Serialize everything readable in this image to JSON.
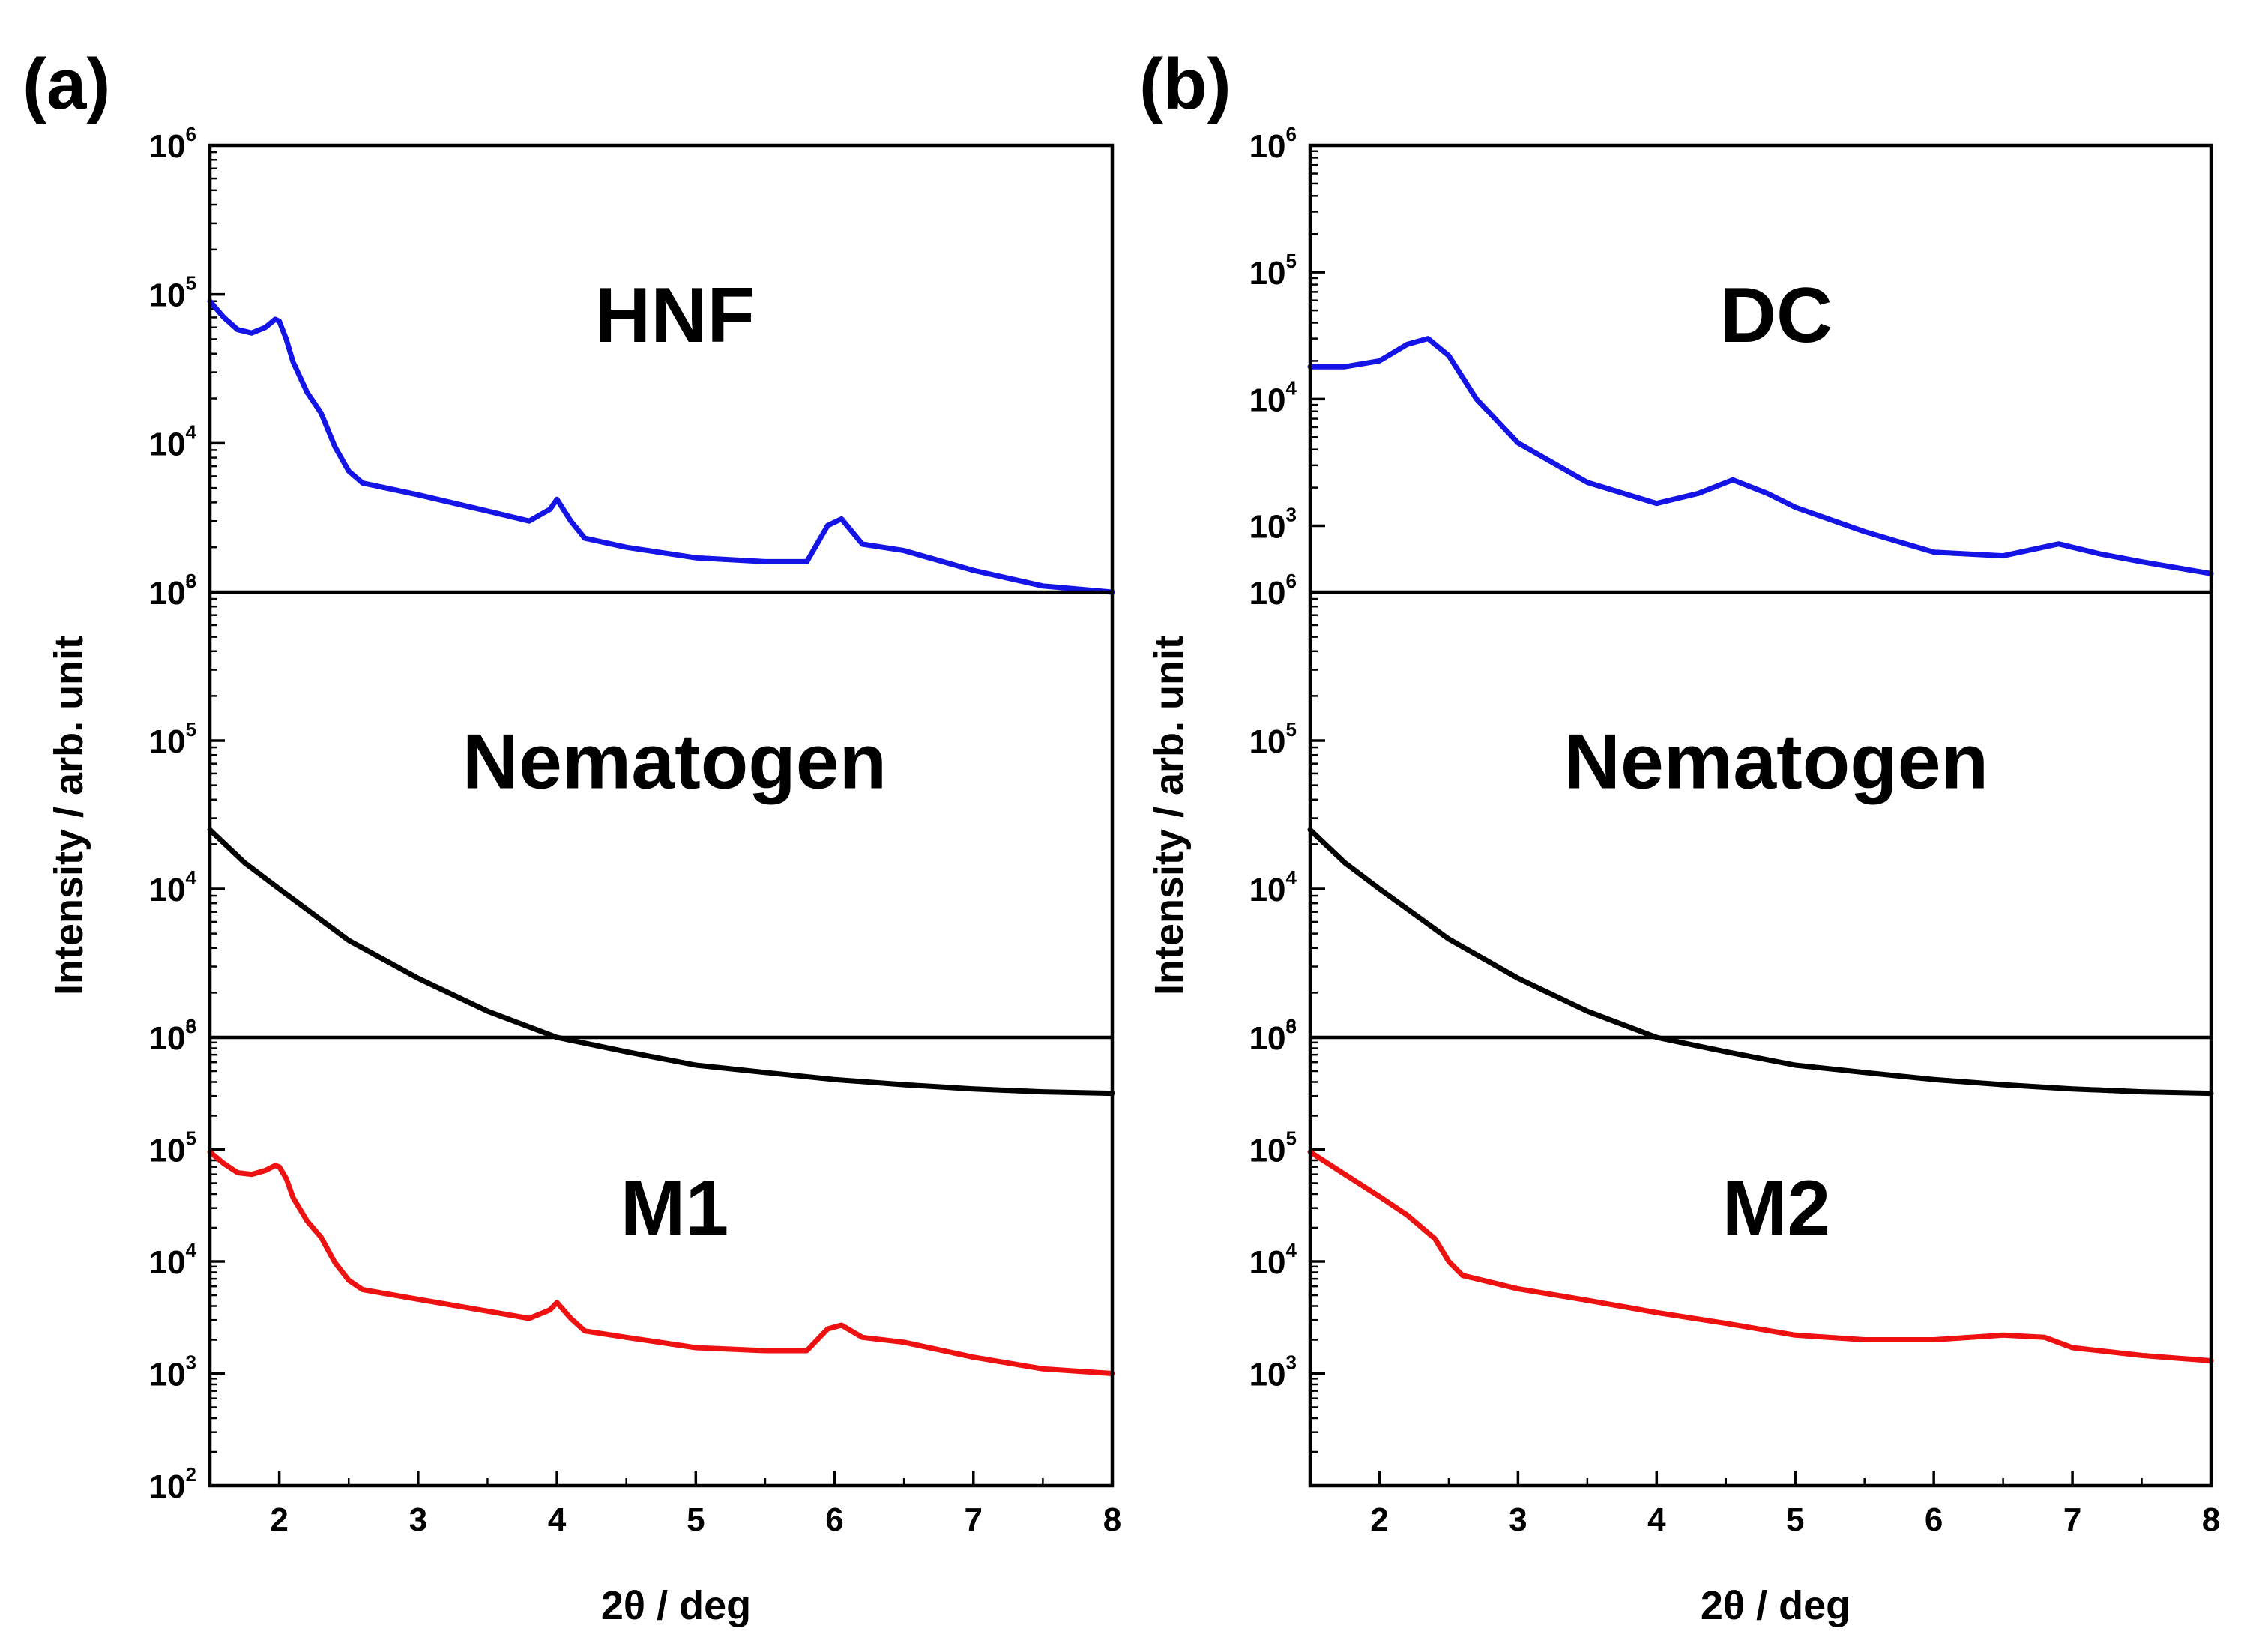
{
  "chart_data": [
    {
      "panel_label": "(a)",
      "type": "line",
      "xlabel": "2θ / deg",
      "ylabel": "Intensity / arb. unit",
      "xlim": [
        1.5,
        8
      ],
      "xticks": [
        "2",
        "3",
        "4",
        "5",
        "6",
        "7",
        "8"
      ],
      "y_scale": "log",
      "subplots": [
        {
          "name": "HNF",
          "label": "HNF",
          "color": "#1414e6",
          "ylim": [
            1000,
            1000000
          ],
          "ytick_labels": [
            {
              "base": "10",
              "exp": "6"
            },
            {
              "base": "10",
              "exp": "5"
            },
            {
              "base": "10",
              "exp": "4"
            },
            {
              "base": "10",
              "exp": "3"
            }
          ],
          "x": [
            1.5,
            1.6,
            1.7,
            1.8,
            1.9,
            1.97,
            2.0,
            2.05,
            2.1,
            2.2,
            2.3,
            2.4,
            2.5,
            2.6,
            3.0,
            3.5,
            3.8,
            3.95,
            4.0,
            4.1,
            4.2,
            4.5,
            5.0,
            5.5,
            5.8,
            5.95,
            6.05,
            6.2,
            6.5,
            7.0,
            7.5,
            8.0
          ],
          "y": [
            90000,
            70000,
            58000,
            55000,
            60000,
            68000,
            66000,
            50000,
            35000,
            22000,
            16000,
            9500,
            6500,
            5400,
            4500,
            3500,
            3000,
            3600,
            4200,
            3000,
            2300,
            2000,
            1700,
            1600,
            1600,
            2800,
            3100,
            2100,
            1900,
            1400,
            1100,
            1000
          ]
        },
        {
          "name": "Nematogen",
          "label": "Nematogen",
          "color": "#000000",
          "ylim": [
            1000,
            1000000
          ],
          "ytick_labels": [
            {
              "base": "10",
              "exp": "6"
            },
            {
              "base": "10",
              "exp": "5"
            },
            {
              "base": "10",
              "exp": "4"
            },
            {
              "base": "10",
              "exp": "3"
            }
          ],
          "x": [
            1.5,
            1.75,
            2.0,
            2.5,
            3.0,
            3.5,
            4.0,
            4.5,
            5.0,
            5.5,
            6.0,
            6.5,
            7.0,
            7.5,
            8.0
          ],
          "y": [
            25000,
            15000,
            10000,
            4500,
            2500,
            1500,
            1000,
            800,
            650,
            580,
            520,
            480,
            450,
            430,
            420
          ]
        },
        {
          "name": "M1",
          "label": "M1",
          "color": "#ee1111",
          "ylim": [
            100,
            1000000
          ],
          "ytick_labels": [
            {
              "base": "10",
              "exp": "6"
            },
            {
              "base": "10",
              "exp": "5"
            },
            {
              "base": "10",
              "exp": "4"
            },
            {
              "base": "10",
              "exp": "3"
            },
            {
              "base": "10",
              "exp": "2"
            }
          ],
          "x": [
            1.5,
            1.6,
            1.7,
            1.8,
            1.9,
            1.97,
            2.0,
            2.05,
            2.1,
            2.2,
            2.3,
            2.4,
            2.5,
            2.6,
            3.0,
            3.5,
            3.8,
            3.95,
            4.0,
            4.1,
            4.2,
            4.5,
            5.0,
            5.5,
            5.8,
            5.95,
            6.05,
            6.2,
            6.5,
            7.0,
            7.5,
            8.0
          ],
          "y": [
            95000,
            75000,
            62000,
            60000,
            65000,
            72000,
            70000,
            55000,
            37000,
            23000,
            16500,
            9800,
            6800,
            5600,
            4600,
            3600,
            3100,
            3700,
            4300,
            3100,
            2400,
            2100,
            1700,
            1600,
            1600,
            2500,
            2700,
            2100,
            1900,
            1400,
            1100,
            1000
          ]
        }
      ]
    },
    {
      "panel_label": "(b)",
      "type": "line",
      "xlabel": "2θ / deg",
      "ylabel": "Intensity / arb. unit",
      "xlim": [
        1.5,
        8
      ],
      "xticks": [
        "2",
        "3",
        "4",
        "5",
        "6",
        "7",
        "8"
      ],
      "y_scale": "log",
      "subplots": [
        {
          "name": "DC",
          "label": "DC",
          "color": "#1414e6",
          "ylim": [
            300,
            1000000
          ],
          "ytick_labels": [
            {
              "base": "10",
              "exp": "6"
            },
            {
              "base": "10",
              "exp": "5"
            },
            {
              "base": "10",
              "exp": "4"
            },
            {
              "base": "10",
              "exp": "3"
            }
          ],
          "x": [
            1.5,
            1.75,
            2.0,
            2.2,
            2.35,
            2.5,
            2.7,
            3.0,
            3.5,
            4.0,
            4.3,
            4.55,
            4.8,
            5.0,
            5.5,
            6.0,
            6.5,
            6.9,
            7.2,
            7.5,
            8.0
          ],
          "y": [
            18000,
            18000,
            20000,
            27000,
            30000,
            22000,
            10000,
            4500,
            2200,
            1500,
            1800,
            2300,
            1800,
            1400,
            900,
            620,
            580,
            720,
            600,
            520,
            420
          ]
        },
        {
          "name": "Nematogen",
          "label": "Nematogen",
          "color": "#000000",
          "ylim": [
            1000,
            1000000
          ],
          "ytick_labels": [
            {
              "base": "10",
              "exp": "6"
            },
            {
              "base": "10",
              "exp": "5"
            },
            {
              "base": "10",
              "exp": "4"
            },
            {
              "base": "10",
              "exp": "3"
            }
          ],
          "x": [
            1.5,
            1.75,
            2.0,
            2.5,
            3.0,
            3.5,
            4.0,
            4.5,
            5.0,
            5.5,
            6.0,
            6.5,
            7.0,
            7.5,
            8.0
          ],
          "y": [
            25000,
            15000,
            10000,
            4600,
            2500,
            1500,
            1000,
            800,
            650,
            580,
            520,
            480,
            450,
            430,
            420
          ]
        },
        {
          "name": "M2",
          "label": "M2",
          "color": "#ee1111",
          "ylim": [
            100,
            1000000
          ],
          "ytick_labels": [
            {
              "base": "10",
              "exp": "6"
            },
            {
              "base": "10",
              "exp": "5"
            },
            {
              "base": "10",
              "exp": "4"
            },
            {
              "base": "10",
              "exp": "3"
            }
          ],
          "x": [
            1.5,
            1.75,
            2.0,
            2.2,
            2.4,
            2.5,
            2.6,
            3.0,
            3.5,
            4.0,
            4.5,
            5.0,
            5.5,
            6.0,
            6.5,
            6.8,
            7.0,
            7.5,
            8.0
          ],
          "y": [
            95000,
            60000,
            38000,
            26000,
            16000,
            10000,
            7500,
            5700,
            4500,
            3500,
            2800,
            2200,
            2000,
            2000,
            2200,
            2100,
            1700,
            1450,
            1300
          ]
        }
      ]
    }
  ]
}
